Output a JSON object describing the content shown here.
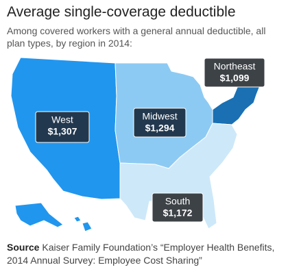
{
  "chart_data": {
    "type": "map",
    "title": "Average single-coverage deductible",
    "subtitle": "Among covered workers with a general annual deductible, all plan types, by region in 2014:",
    "categories": [
      "West",
      "Midwest",
      "Northeast",
      "South"
    ],
    "values": [
      1307,
      1294,
      1099,
      1172
    ],
    "value_labels": [
      "$1,307",
      "$1,294",
      "$1,099",
      "$1,172"
    ],
    "colors": [
      "#2196ee",
      "#8dcaf3",
      "#1a70b3",
      "#cde8f9"
    ],
    "label_box_colors": [
      "#22384e",
      "#22384e",
      "#3d4247",
      "#3d4247"
    ],
    "source_label": "Source",
    "source": "Kaiser Family Foundation’s “Employer Health Benefits, 2014 Annual Survey: Employee Cost Sharing”"
  }
}
